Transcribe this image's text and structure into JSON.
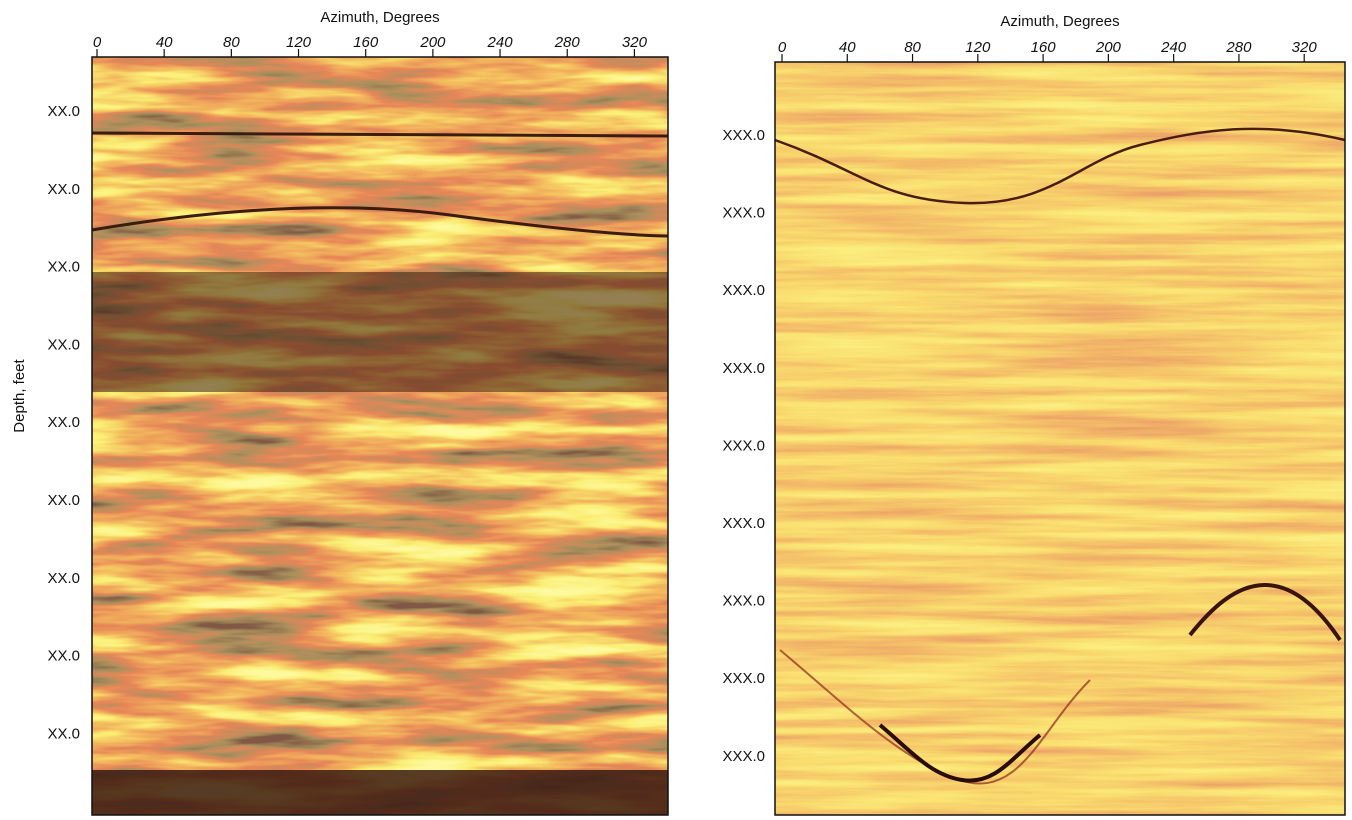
{
  "chart_data": [
    {
      "type": "image",
      "x_label": "Azimuth, Degrees",
      "y_label": "Depth, feet",
      "xlim": [
        0,
        340
      ],
      "xticks": [
        0,
        40,
        80,
        120,
        160,
        200,
        240,
        280,
        320
      ],
      "ytick_labels": [
        "XX.0",
        "XX.0",
        "XX.0",
        "XX.0",
        "XX.0",
        "XX.0",
        "XX.0",
        "XX.0",
        "XX.0"
      ]
    },
    {
      "type": "image",
      "x_label": "Azimuth, Degrees",
      "xlim": [
        0,
        345
      ],
      "xticks": [
        0,
        40,
        80,
        120,
        160,
        200,
        240,
        280,
        320
      ],
      "ytick_labels": [
        "XXX.0",
        "XXX.0",
        "XXX.0",
        "XXX.0",
        "XXX.0",
        "XXX.0",
        "XXX.0",
        "XXX.0",
        "XXX.0"
      ]
    }
  ]
}
